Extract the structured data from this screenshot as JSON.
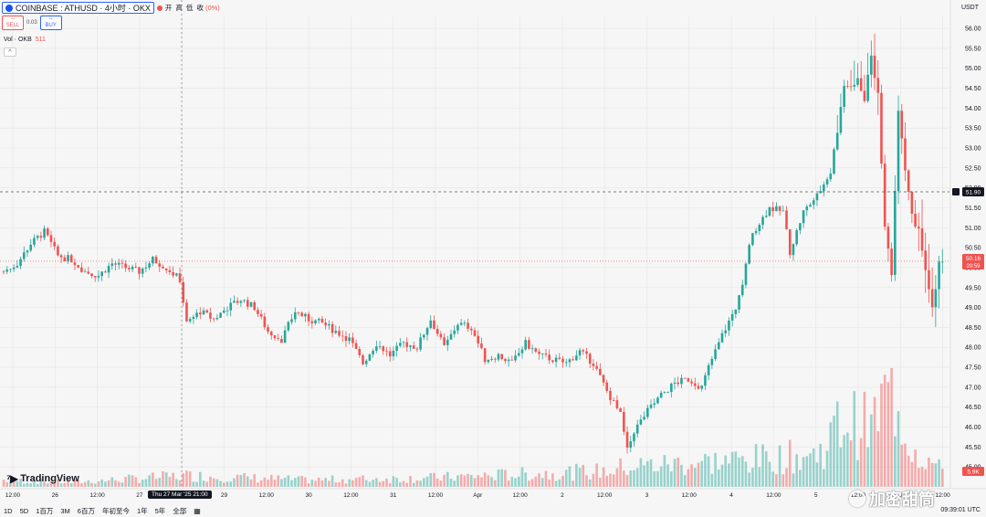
{
  "header": {
    "symbol": "COINBASE : ATHUSD · 4小时 · OKX",
    "ohlc": {
      "o_label": "开",
      "h_label": "高",
      "l_label": "低",
      "c_label": "收",
      "change": "(0%)"
    },
    "more": "•••"
  },
  "trade": {
    "sell_label": "SELL",
    "buy_label": "BUY",
    "spread": "0.03",
    "sell_price": "--",
    "buy_price": "--"
  },
  "volume": {
    "label": "Vol · OKB",
    "value": "511"
  },
  "currency": "USDT",
  "price_labels": {
    "crosshair": "51.90",
    "last": "50.16",
    "countdown": "20:59",
    "volume": "5.9K"
  },
  "x_labels": [
    "12:00",
    "26",
    "12:00",
    "27",
    "12:00",
    "29",
    "12:00",
    "30",
    "12:00",
    "31",
    "12:00",
    "Apr",
    "12:00",
    "2",
    "12:00",
    "3",
    "12:00",
    "4",
    "12:00",
    "5",
    "12:00",
    "6",
    "12:00"
  ],
  "crosshair_time": "Thu 27 Mar '25  21:00",
  "bottom": {
    "timeframes": [
      "1D",
      "5D",
      "1百万",
      "3M",
      "6百万",
      "年初至今",
      "1年",
      "5年",
      "全部"
    ],
    "calendar_icon": "calendar-icon",
    "clock": "09:39:01 UTC"
  },
  "brand": {
    "name": "TradingView"
  },
  "watermark": "加密甜筒",
  "colors": {
    "up": "#26a69a",
    "down": "#ef5350",
    "accent": "#2962ff"
  },
  "chart_data": {
    "type": "candlestick",
    "y_ticks": [
      45.0,
      45.5,
      46.0,
      46.5,
      47.0,
      47.5,
      48.0,
      48.5,
      49.0,
      49.5,
      50.0,
      50.5,
      51.0,
      51.5,
      52.0,
      52.5,
      53.0,
      53.5,
      54.0,
      54.5,
      55.0,
      55.5,
      56.0
    ],
    "ylim": [
      44.5,
      56.3
    ],
    "close_path": [
      [
        0,
        49.9
      ],
      [
        4,
        50.1
      ],
      [
        8,
        50.6
      ],
      [
        12,
        50.9
      ],
      [
        16,
        50.3
      ],
      [
        20,
        50.2
      ],
      [
        24,
        49.9
      ],
      [
        28,
        49.8
      ],
      [
        32,
        50.1
      ],
      [
        36,
        50.0
      ],
      [
        40,
        49.9
      ],
      [
        44,
        50.2
      ],
      [
        48,
        50.0
      ],
      [
        52,
        49.7
      ],
      [
        54,
        48.6
      ],
      [
        58,
        48.9
      ],
      [
        62,
        48.7
      ],
      [
        66,
        49.0
      ],
      [
        70,
        49.2
      ],
      [
        74,
        49.0
      ],
      [
        78,
        48.4
      ],
      [
        82,
        48.2
      ],
      [
        86,
        48.9
      ],
      [
        90,
        48.7
      ],
      [
        94,
        48.6
      ],
      [
        98,
        48.4
      ],
      [
        102,
        48.2
      ],
      [
        106,
        47.6
      ],
      [
        110,
        48.1
      ],
      [
        114,
        47.8
      ],
      [
        118,
        48.1
      ],
      [
        122,
        48.0
      ],
      [
        126,
        48.7
      ],
      [
        130,
        48.0
      ],
      [
        134,
        48.6
      ],
      [
        138,
        48.5
      ],
      [
        142,
        47.7
      ],
      [
        146,
        47.8
      ],
      [
        150,
        47.6
      ],
      [
        154,
        48.1
      ],
      [
        158,
        47.8
      ],
      [
        162,
        47.7
      ],
      [
        166,
        47.6
      ],
      [
        170,
        47.9
      ],
      [
        174,
        47.6
      ],
      [
        178,
        46.9
      ],
      [
        182,
        46.3
      ],
      [
        184,
        45.4
      ],
      [
        186,
        45.9
      ],
      [
        190,
        46.4
      ],
      [
        194,
        46.8
      ],
      [
        198,
        47.1
      ],
      [
        202,
        47.2
      ],
      [
        206,
        47.0
      ],
      [
        208,
        47.5
      ],
      [
        212,
        48.3
      ],
      [
        216,
        49.0
      ],
      [
        218,
        49.5
      ],
      [
        220,
        50.6
      ],
      [
        222,
        51.0
      ],
      [
        226,
        51.5
      ],
      [
        230,
        51.4
      ],
      [
        232,
        50.4
      ],
      [
        236,
        51.4
      ],
      [
        240,
        51.8
      ],
      [
        244,
        52.4
      ],
      [
        248,
        54.5
      ],
      [
        252,
        54.7
      ],
      [
        254,
        54.2
      ],
      [
        256,
        55.3
      ],
      [
        258,
        54.3
      ],
      [
        260,
        51.0
      ],
      [
        262,
        49.8
      ],
      [
        264,
        54.0
      ],
      [
        266,
        52.5
      ],
      [
        268,
        51.3
      ],
      [
        270,
        50.9
      ],
      [
        274,
        49.0
      ],
      [
        276,
        50.1
      ]
    ],
    "volume_path": [
      [
        0,
        3
      ],
      [
        20,
        2
      ],
      [
        54,
        5
      ],
      [
        90,
        3
      ],
      [
        126,
        4
      ],
      [
        178,
        7
      ],
      [
        184,
        9
      ],
      [
        220,
        12
      ],
      [
        240,
        14
      ],
      [
        248,
        30
      ],
      [
        256,
        26
      ],
      [
        262,
        45
      ],
      [
        268,
        18
      ],
      [
        276,
        8
      ]
    ],
    "n_candles": 278
  }
}
